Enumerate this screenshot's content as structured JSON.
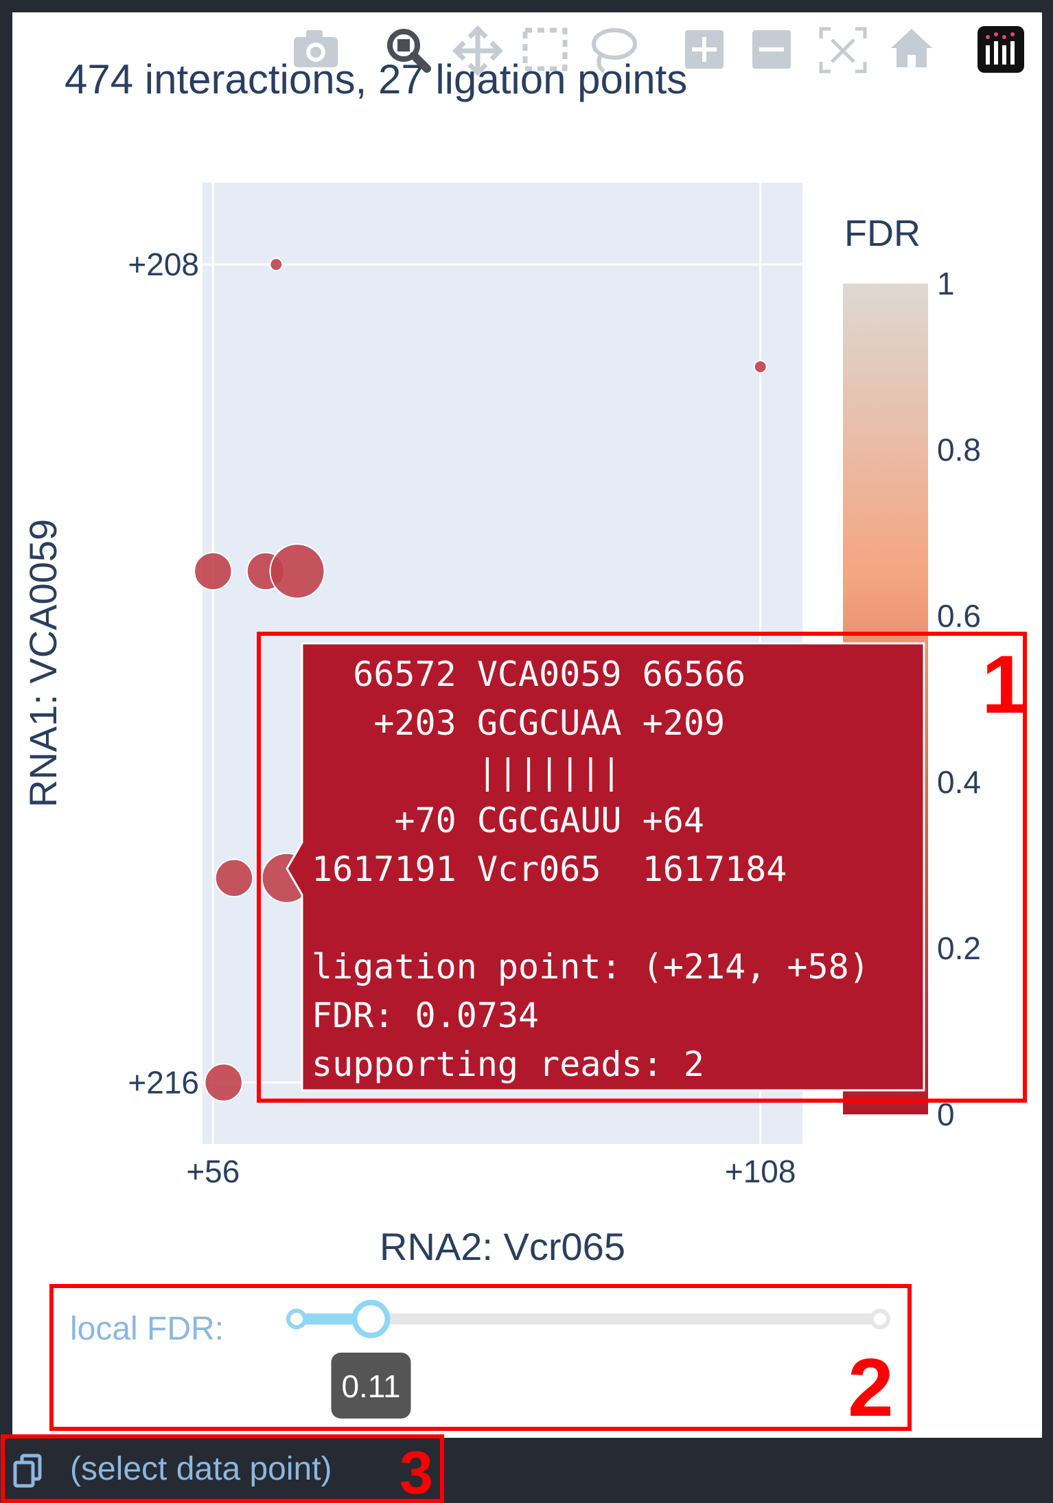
{
  "chart_data": {
    "type": "scatter",
    "title": "474 interactions, 27 ligation points",
    "xlabel": "RNA2: Vcr065",
    "ylabel": "RNA1: VCA0059",
    "xlim": [
      55,
      112
    ],
    "ylim": [
      216.6,
      207.2
    ],
    "x_axis_reversed": false,
    "y_axis_reversed": true,
    "x_ticks": [
      {
        "value": 56,
        "label": "+56"
      },
      {
        "value": 108,
        "label": "+108"
      }
    ],
    "y_ticks": [
      {
        "value": 208,
        "label": "+208"
      },
      {
        "value": 216,
        "label": "+216"
      }
    ],
    "grid": true,
    "points": [
      {
        "x": 62,
        "y": 208,
        "reads": 1,
        "fdr": 0.05
      },
      {
        "x": 108,
        "y": 209,
        "reads": 1,
        "fdr": 0.05
      },
      {
        "x": 56,
        "y": 211,
        "reads": 2,
        "fdr": 0.05
      },
      {
        "x": 61,
        "y": 211,
        "reads": 2,
        "fdr": 0.05
      },
      {
        "x": 64,
        "y": 211,
        "reads": 5,
        "fdr": 0.05
      },
      {
        "x": 58,
        "y": 214,
        "reads": 2,
        "fdr": 0.0734
      },
      {
        "x": 63,
        "y": 214,
        "reads": 4,
        "fdr": 0.05
      },
      {
        "x": 57,
        "y": 216,
        "reads": 2,
        "fdr": 0.05
      }
    ],
    "colorbar": {
      "title": "FDR",
      "min": 0,
      "max": 1,
      "ticks": [
        "0",
        "0.2",
        "0.4",
        "0.6",
        "0.8",
        "1"
      ],
      "colors": [
        "#b2182b",
        "#d6604d",
        "#f4a582",
        "#ddd8d4"
      ]
    },
    "marker_color": "#c0434e"
  },
  "modebar": {
    "icons": [
      "camera-icon",
      "zoom-icon",
      "pan-icon",
      "box-select-icon",
      "lasso-select-icon",
      "zoom-in-icon",
      "zoom-out-icon",
      "autoscale-icon",
      "reset-axes-icon",
      "plotly-logo-icon"
    ]
  },
  "tooltip": {
    "lines": [
      "  66572 VCA0059 66566",
      "   +203 GCGCUAA +209",
      "        |||||||",
      "    +70 CGCGAUU +64",
      "1617191 Vcr065  1617184",
      "",
      "ligation point: (+214, +58)",
      "FDR: 0.0734",
      "supporting reads: 2"
    ],
    "background": "#b2182b"
  },
  "slider": {
    "label": "local FDR:",
    "value": 0.11,
    "value_label": "0.11",
    "min": 0,
    "max": 1
  },
  "footer": {
    "copy_icon": "copy-icon",
    "status_text": "(select data point)"
  },
  "annotations": [
    {
      "number": "1",
      "target": "tooltip"
    },
    {
      "number": "2",
      "target": "fdr-slider"
    },
    {
      "number": "3",
      "target": "status-bar"
    }
  ]
}
